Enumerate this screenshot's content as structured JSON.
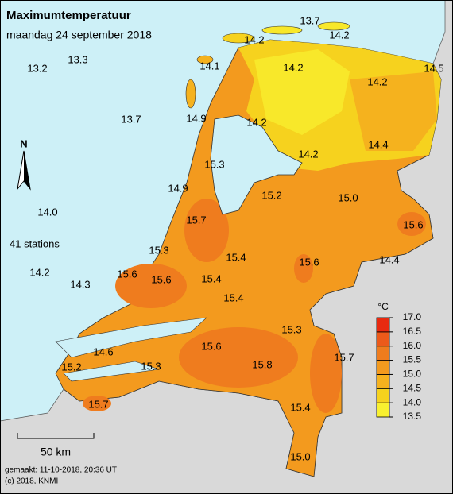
{
  "title": "Maximumtemperatuur",
  "subtitle": "maandag 24 september 2018",
  "stations_count": "41 stations",
  "north": "N",
  "scale_label": "50 km",
  "footer": [
    "gemaakt: 11-10-2018, 20:36 UT",
    "(c) 2018, KNMI"
  ],
  "legend": {
    "unit": "°C",
    "ticks": [
      13.5,
      {
        "value": 14,
        "label": "14.0"
      },
      14.5,
      {
        "value": 15,
        "label": "15.0"
      },
      15.5,
      {
        "value": 16,
        "label": "16.0"
      },
      16.5,
      {
        "value": 17,
        "label": "17.0"
      }
    ],
    "colors": [
      "#f8f030",
      "#f6d21e",
      "#f5b21e",
      "#f39a1e",
      "#ef7c1e",
      "#ec5a1a",
      "#e82a10"
    ]
  },
  "stations": [
    "13.7",
    "14.2",
    "14.2",
    "13.3",
    "13.2",
    "14.1",
    "14.2",
    "14.2",
    "14.5",
    "13.7",
    "14.9",
    "14.2",
    "14.2",
    "14.4",
    "15.3",
    "14.9",
    "15.2",
    "15.0",
    "14.0",
    "15.7",
    "15.6",
    "15.3",
    "15.4",
    "15.6",
    "14.4",
    "14.2",
    "15.6",
    "15.6",
    "15.4",
    "14.3",
    "15.4",
    "15.3",
    "14.6",
    "15.6",
    "15.7",
    "15.2",
    "15.3",
    "15.8",
    "15.7",
    "15.4",
    "15.0"
  ]
}
